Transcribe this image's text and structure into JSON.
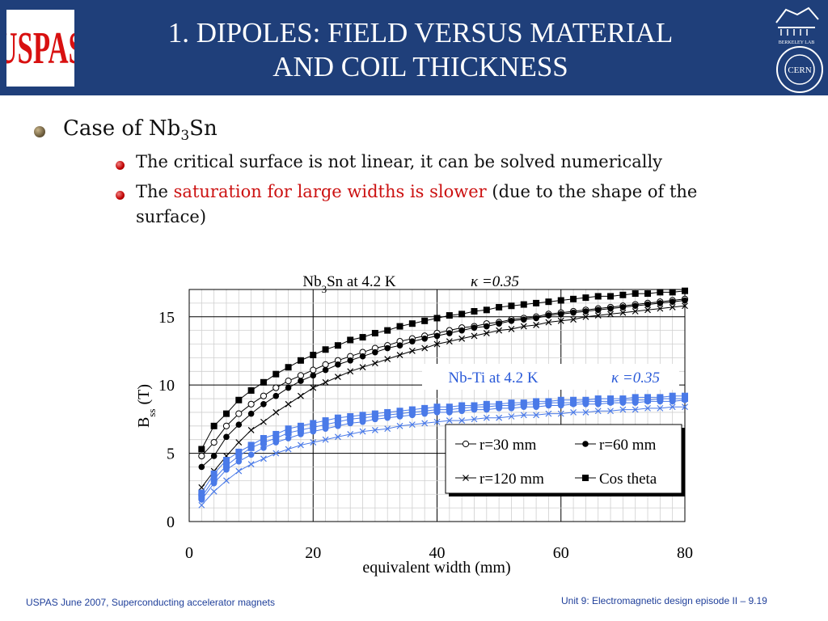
{
  "header": {
    "title_line1": "1. DIPOLES: FIELD VERSUS MATERIAL",
    "title_line2": "AND COIL THICKNESS",
    "logo_left": "USPAS",
    "logo_right_top": "BERKELEY LAB",
    "logo_right_bottom": "CERN"
  },
  "bullets": {
    "main_prefix": "Case of Nb",
    "main_sub": "3",
    "main_suffix": "Sn",
    "sub1": "The critical surface is not linear, it can be solved numerically",
    "sub2_prefix": "The ",
    "sub2_highlight": "saturation for large widths is slower",
    "sub2_suffix": " (due to the shape of the surface)"
  },
  "chart_data": {
    "type": "line",
    "title_nb3sn_prefix": "Nb",
    "title_nb3sn_sub": "3",
    "title_nb3sn_suffix": "Sn at 4.2 K",
    "kappa_label": "κ =0.35",
    "title_nbti": "Nb-Ti at 4.2 K",
    "kappa_label_nbti": "κ =0.35",
    "xlabel": "equivalent width (mm)",
    "ylabel_main": "B",
    "ylabel_sub": "ss",
    "ylabel_unit": " (T)",
    "xlim": [
      0,
      80
    ],
    "ylim": [
      0,
      17
    ],
    "x_ticks": [
      "0",
      "20",
      "40",
      "60",
      "80"
    ],
    "y_ticks": [
      "0",
      "5",
      "10",
      "15"
    ],
    "x": [
      2,
      4,
      6,
      8,
      10,
      12,
      14,
      16,
      18,
      20,
      22,
      24,
      26,
      28,
      30,
      32,
      34,
      36,
      38,
      40,
      42,
      44,
      46,
      48,
      50,
      52,
      54,
      56,
      58,
      60,
      62,
      64,
      66,
      68,
      70,
      72,
      74,
      76,
      78,
      80
    ],
    "series": [
      {
        "name": "r=30 mm",
        "material": "Nb3Sn",
        "marker": "open-circle",
        "values": [
          4.8,
          5.8,
          7.0,
          7.9,
          8.6,
          9.2,
          9.8,
          10.3,
          10.7,
          11.1,
          11.5,
          11.8,
          12.1,
          12.4,
          12.7,
          12.9,
          13.2,
          13.4,
          13.6,
          13.8,
          14.0,
          14.2,
          14.3,
          14.5,
          14.6,
          14.8,
          14.9,
          15.0,
          15.2,
          15.3,
          15.4,
          15.5,
          15.6,
          15.7,
          15.8,
          15.9,
          16.0,
          16.1,
          16.2,
          16.3
        ]
      },
      {
        "name": "r=60 mm",
        "material": "Nb3Sn",
        "marker": "filled-circle",
        "values": [
          4.0,
          4.8,
          6.2,
          7.1,
          7.9,
          8.6,
          9.2,
          9.8,
          10.3,
          10.7,
          11.1,
          11.5,
          11.8,
          12.1,
          12.4,
          12.7,
          12.9,
          13.2,
          13.4,
          13.6,
          13.8,
          14.0,
          14.2,
          14.3,
          14.5,
          14.7,
          14.8,
          14.9,
          15.1,
          15.2,
          15.3,
          15.4,
          15.5,
          15.6,
          15.7,
          15.8,
          15.9,
          16.0,
          16.1,
          16.2
        ]
      },
      {
        "name": "r=120 mm",
        "material": "Nb3Sn",
        "marker": "cross",
        "values": [
          2.5,
          3.7,
          4.8,
          5.8,
          6.7,
          7.3,
          8.0,
          8.6,
          9.2,
          9.8,
          10.2,
          10.6,
          11.0,
          11.3,
          11.6,
          11.9,
          12.2,
          12.5,
          12.7,
          13.0,
          13.2,
          13.4,
          13.6,
          13.8,
          14.0,
          14.1,
          14.3,
          14.4,
          14.6,
          14.7,
          14.8,
          15.0,
          15.1,
          15.2,
          15.3,
          15.4,
          15.5,
          15.6,
          15.7,
          15.8
        ]
      },
      {
        "name": "Cos theta",
        "material": "Nb3Sn",
        "marker": "filled-square",
        "values": [
          5.3,
          7.0,
          7.9,
          8.9,
          9.6,
          10.2,
          10.8,
          11.3,
          11.8,
          12.2,
          12.6,
          12.9,
          13.3,
          13.5,
          13.8,
          14.0,
          14.3,
          14.5,
          14.7,
          14.9,
          15.1,
          15.2,
          15.4,
          15.5,
          15.7,
          15.8,
          15.9,
          16.0,
          16.1,
          16.2,
          16.3,
          16.4,
          16.5,
          16.5,
          16.6,
          16.7,
          16.7,
          16.8,
          16.8,
          16.9
        ]
      },
      {
        "name": "r=30 mm",
        "material": "Nb-Ti",
        "marker": "blue-square",
        "values": [
          1.8,
          3.1,
          4.1,
          4.8,
          5.4,
          5.8,
          6.1,
          6.5,
          6.7,
          6.9,
          7.1,
          7.3,
          7.5,
          7.6,
          7.7,
          7.8,
          7.9,
          8.0,
          8.1,
          8.2,
          8.2,
          8.3,
          8.4,
          8.4,
          8.5,
          8.5,
          8.6,
          8.6,
          8.7,
          8.7,
          8.7,
          8.8,
          8.8,
          8.8,
          8.9,
          8.9,
          8.9,
          9.0,
          9.0,
          9.0
        ]
      },
      {
        "name": "r=60 mm",
        "material": "Nb-Ti",
        "marker": "blue-circle",
        "values": [
          1.6,
          2.8,
          3.8,
          4.4,
          4.9,
          5.4,
          5.8,
          6.1,
          6.4,
          6.6,
          6.8,
          7.0,
          7.2,
          7.3,
          7.5,
          7.6,
          7.7,
          7.8,
          7.9,
          8.0,
          8.0,
          8.1,
          8.2,
          8.2,
          8.3,
          8.3,
          8.4,
          8.4,
          8.5,
          8.5,
          8.6,
          8.6,
          8.6,
          8.7,
          8.7,
          8.7,
          8.8,
          8.8,
          8.8,
          8.9
        ]
      },
      {
        "name": "r=120 mm",
        "material": "Nb-Ti",
        "marker": "blue-cross",
        "values": [
          1.2,
          2.2,
          3.0,
          3.7,
          4.2,
          4.6,
          5.0,
          5.3,
          5.6,
          5.8,
          6.0,
          6.2,
          6.4,
          6.6,
          6.7,
          6.8,
          7.0,
          7.1,
          7.2,
          7.3,
          7.4,
          7.4,
          7.5,
          7.6,
          7.6,
          7.7,
          7.8,
          7.8,
          7.9,
          7.9,
          8.0,
          8.0,
          8.1,
          8.1,
          8.2,
          8.2,
          8.3,
          8.3,
          8.4,
          8.4
        ]
      },
      {
        "name": "Cos theta",
        "material": "Nb-Ti",
        "marker": "blue-square-filled",
        "values": [
          2.1,
          3.5,
          4.5,
          5.1,
          5.6,
          6.1,
          6.4,
          6.8,
          7.0,
          7.2,
          7.4,
          7.6,
          7.7,
          7.8,
          7.9,
          8.0,
          8.1,
          8.2,
          8.3,
          8.4,
          8.4,
          8.5,
          8.5,
          8.6,
          8.6,
          8.7,
          8.7,
          8.8,
          8.8,
          8.9,
          8.9,
          8.9,
          9.0,
          9.0,
          9.0,
          9.1,
          9.1,
          9.1,
          9.2,
          9.2
        ]
      }
    ],
    "legend": {
      "items": [
        "r=30 mm",
        "r=60 mm",
        "r=120 mm",
        "Cos theta"
      ],
      "placement": "bottom-right"
    },
    "colors": {
      "nb3sn": "#000000",
      "nbti": "#4a7ae8"
    },
    "grid": true
  },
  "footer": {
    "left": "USPAS June  2007,  Superconducting accelerator magnets",
    "right": "Unit 9: Electromagnetic design episode II – 9.19"
  }
}
